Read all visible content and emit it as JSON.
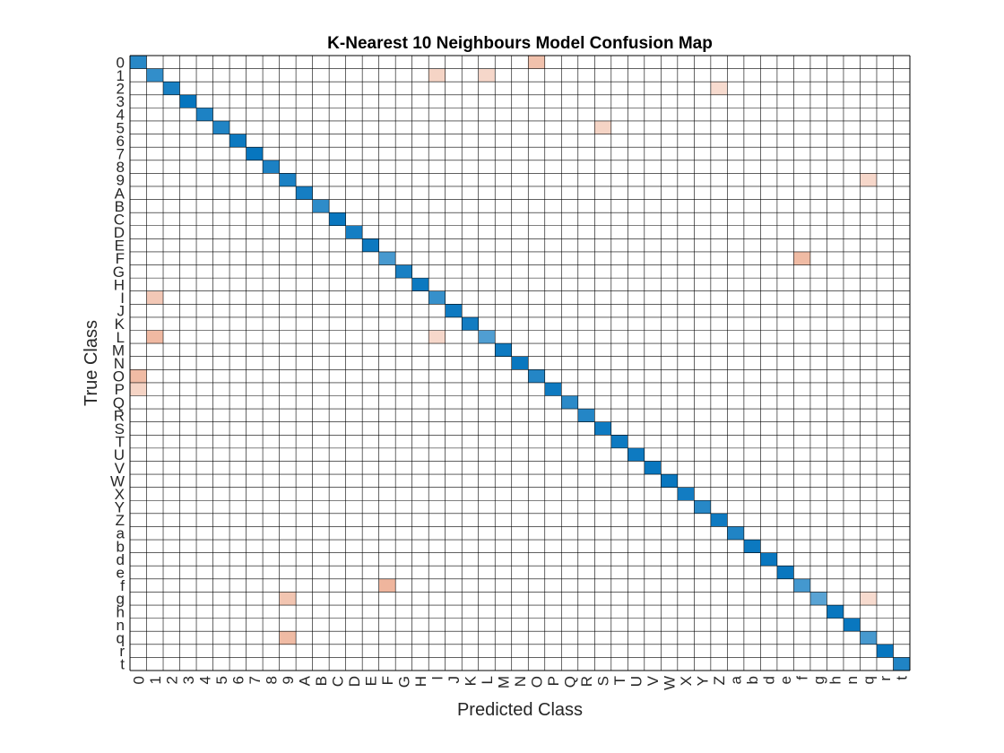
{
  "chart_data": {
    "type": "heatmap",
    "title": "K-Nearest 10 Neighbours Model Confusion Map",
    "xlabel": "Predicted Class",
    "ylabel": "True Class",
    "classes": [
      "0",
      "1",
      "2",
      "3",
      "4",
      "5",
      "6",
      "7",
      "8",
      "9",
      "A",
      "B",
      "C",
      "D",
      "E",
      "F",
      "G",
      "H",
      "I",
      "J",
      "K",
      "L",
      "M",
      "N",
      "O",
      "P",
      "Q",
      "R",
      "S",
      "T",
      "U",
      "V",
      "W",
      "X",
      "Y",
      "Z",
      "a",
      "b",
      "d",
      "e",
      "f",
      "g",
      "h",
      "n",
      "q",
      "r",
      "t"
    ],
    "diagonal": [
      0.78,
      0.72,
      0.86,
      0.97,
      0.84,
      0.82,
      0.93,
      0.96,
      0.85,
      0.85,
      0.88,
      0.74,
      0.95,
      0.88,
      0.93,
      0.6,
      0.86,
      0.93,
      0.7,
      0.92,
      0.9,
      0.55,
      0.92,
      0.95,
      0.8,
      0.92,
      0.76,
      0.8,
      0.92,
      0.92,
      0.92,
      0.95,
      0.95,
      0.9,
      0.78,
      0.92,
      0.82,
      0.93,
      0.95,
      0.95,
      0.62,
      0.5,
      0.95,
      0.95,
      0.6,
      0.96,
      0.82
    ],
    "highlighted_off_diagonal": [
      {
        "true": "0",
        "predicted": "O",
        "value": 0.22
      },
      {
        "true": "1",
        "predicted": "I",
        "value": 0.12
      },
      {
        "true": "1",
        "predicted": "L",
        "value": 0.1
      },
      {
        "true": "2",
        "predicted": "Z",
        "value": 0.08
      },
      {
        "true": "5",
        "predicted": "S",
        "value": 0.12
      },
      {
        "true": "9",
        "predicted": "q",
        "value": 0.1
      },
      {
        "true": "F",
        "predicted": "f",
        "value": 0.25
      },
      {
        "true": "I",
        "predicted": "1",
        "value": 0.18
      },
      {
        "true": "L",
        "predicted": "1",
        "value": 0.26
      },
      {
        "true": "L",
        "predicted": "I",
        "value": 0.1
      },
      {
        "true": "O",
        "predicted": "0",
        "value": 0.25
      },
      {
        "true": "P",
        "predicted": "0",
        "value": 0.12
      },
      {
        "true": "f",
        "predicted": "F",
        "value": 0.28
      },
      {
        "true": "g",
        "predicted": "9",
        "value": 0.2
      },
      {
        "true": "g",
        "predicted": "q",
        "value": 0.08
      },
      {
        "true": "q",
        "predicted": "9",
        "value": 0.25
      }
    ],
    "colors": {
      "correct": "#0072BD",
      "error": "#D95319",
      "grid": "#000000"
    },
    "grid": true
  }
}
